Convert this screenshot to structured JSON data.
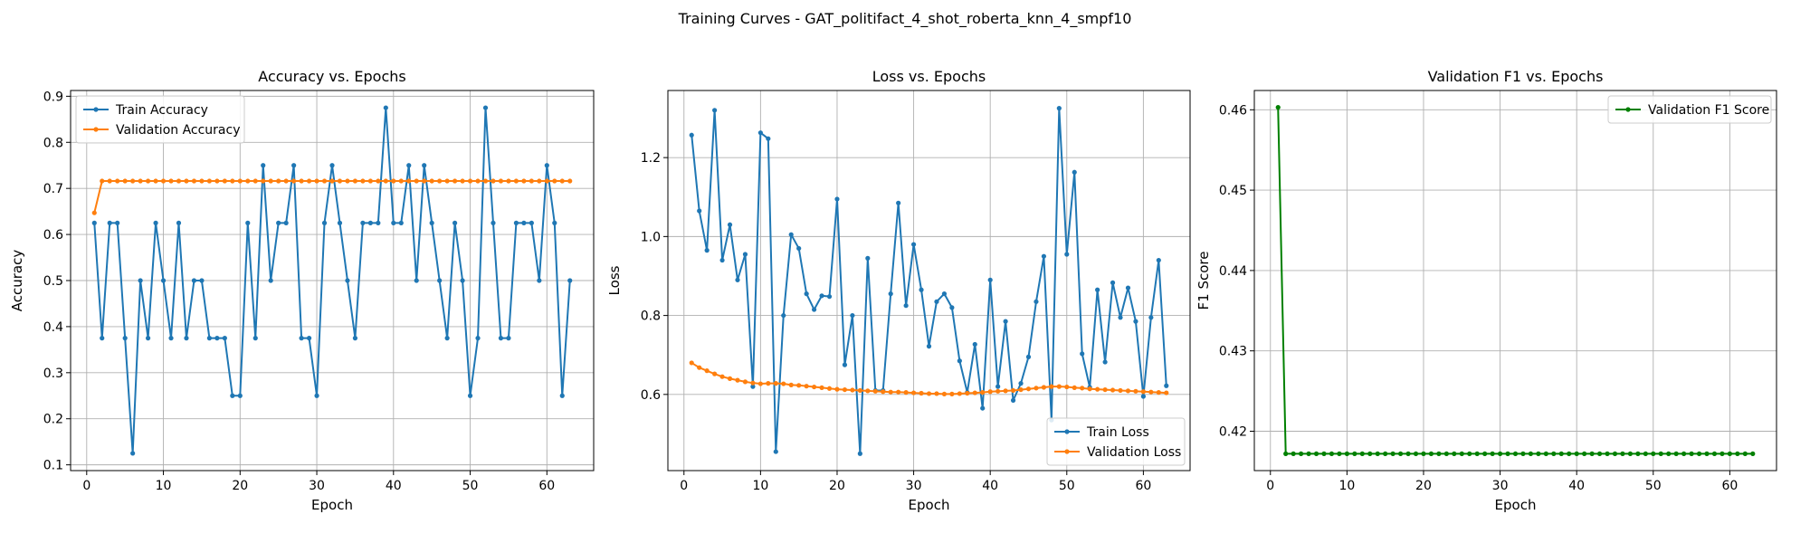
{
  "figure": {
    "suptitle": "Training Curves - GAT_politifact_4_shot_roberta_knn_4_smpf10"
  },
  "colors": {
    "train": "#1f77b4",
    "validation": "#ff7f0e",
    "f1": "#008000",
    "grid": "#b0b0b0"
  },
  "chart_data": [
    {
      "type": "line",
      "title": "Accuracy vs. Epochs",
      "xlabel": "Epoch",
      "ylabel": "Accuracy",
      "xlim": [
        -2.1,
        66.1
      ],
      "ylim": [
        0.0875,
        0.9125
      ],
      "xticks": [
        0,
        10,
        20,
        30,
        40,
        50,
        60
      ],
      "yticks": [
        0.1,
        0.2,
        0.3,
        0.4,
        0.5,
        0.6,
        0.7,
        0.8,
        0.9
      ],
      "grid": true,
      "legend_position": "top-left",
      "x": [
        1,
        2,
        3,
        4,
        5,
        6,
        7,
        8,
        9,
        10,
        11,
        12,
        13,
        14,
        15,
        16,
        17,
        18,
        19,
        20,
        21,
        22,
        23,
        24,
        25,
        26,
        27,
        28,
        29,
        30,
        31,
        32,
        33,
        34,
        35,
        36,
        37,
        38,
        39,
        40,
        41,
        42,
        43,
        44,
        45,
        46,
        47,
        48,
        49,
        50,
        51,
        52,
        53,
        54,
        55,
        56,
        57,
        58,
        59,
        60,
        61,
        62,
        63
      ],
      "series": [
        {
          "name": "Train Accuracy",
          "color": "#1f77b4",
          "values": [
            0.625,
            0.375,
            0.625,
            0.625,
            0.375,
            0.125,
            0.5,
            0.375,
            0.625,
            0.5,
            0.375,
            0.625,
            0.375,
            0.5,
            0.5,
            0.375,
            0.375,
            0.375,
            0.25,
            0.25,
            0.625,
            0.375,
            0.75,
            0.5,
            0.625,
            0.625,
            0.75,
            0.375,
            0.375,
            0.25,
            0.625,
            0.75,
            0.625,
            0.5,
            0.375,
            0.625,
            0.625,
            0.625,
            0.875,
            0.625,
            0.625,
            0.75,
            0.5,
            0.75,
            0.625,
            0.5,
            0.375,
            0.625,
            0.5,
            0.25,
            0.375,
            0.875,
            0.625,
            0.375,
            0.375,
            0.625,
            0.625,
            0.625,
            0.5,
            0.75,
            0.625,
            0.25,
            0.5
          ]
        },
        {
          "name": "Validation Accuracy",
          "color": "#ff7f0e",
          "values": [
            0.647,
            0.716,
            0.716,
            0.716,
            0.716,
            0.716,
            0.716,
            0.716,
            0.716,
            0.716,
            0.716,
            0.716,
            0.716,
            0.716,
            0.716,
            0.716,
            0.716,
            0.716,
            0.716,
            0.716,
            0.716,
            0.716,
            0.716,
            0.716,
            0.716,
            0.716,
            0.716,
            0.716,
            0.716,
            0.716,
            0.716,
            0.716,
            0.716,
            0.716,
            0.716,
            0.716,
            0.716,
            0.716,
            0.716,
            0.716,
            0.716,
            0.716,
            0.716,
            0.716,
            0.716,
            0.716,
            0.716,
            0.716,
            0.716,
            0.716,
            0.716,
            0.716,
            0.716,
            0.716,
            0.716,
            0.716,
            0.716,
            0.716,
            0.716,
            0.716,
            0.716,
            0.716,
            0.716
          ]
        }
      ]
    },
    {
      "type": "line",
      "title": "Loss vs. Epochs",
      "xlabel": "Epoch",
      "ylabel": "Loss",
      "xlim": [
        -2.1,
        66.1
      ],
      "ylim": [
        0.407,
        1.37
      ],
      "xticks": [
        0,
        10,
        20,
        30,
        40,
        50,
        60
      ],
      "yticks": [
        0.6,
        0.8,
        1.0,
        1.2
      ],
      "ytick_labels": [
        "0.6",
        "0.8",
        "1.0",
        "1.2"
      ],
      "grid": true,
      "legend_position": "bottom-right",
      "x": [
        1,
        2,
        3,
        4,
        5,
        6,
        7,
        8,
        9,
        10,
        11,
        12,
        13,
        14,
        15,
        16,
        17,
        18,
        19,
        20,
        21,
        22,
        23,
        24,
        25,
        26,
        27,
        28,
        29,
        30,
        31,
        32,
        33,
        34,
        35,
        36,
        37,
        38,
        39,
        40,
        41,
        42,
        43,
        44,
        45,
        46,
        47,
        48,
        49,
        50,
        51,
        52,
        53,
        54,
        55,
        56,
        57,
        58,
        59,
        60,
        61,
        62,
        63
      ],
      "series": [
        {
          "name": "Train Loss",
          "color": "#1f77b4",
          "values": [
            1.257,
            1.065,
            0.965,
            1.32,
            0.94,
            1.03,
            0.89,
            0.955,
            0.62,
            1.263,
            1.248,
            0.455,
            0.8,
            1.005,
            0.97,
            0.855,
            0.815,
            0.85,
            0.848,
            1.095,
            0.675,
            0.8,
            0.45,
            0.945,
            0.61,
            0.61,
            0.855,
            1.085,
            0.825,
            0.98,
            0.865,
            0.722,
            0.835,
            0.855,
            0.82,
            0.685,
            0.605,
            0.727,
            0.565,
            0.89,
            0.62,
            0.785,
            0.585,
            0.628,
            0.695,
            0.835,
            0.95,
            0.535,
            1.325,
            0.955,
            1.163,
            0.703,
            0.618,
            0.865,
            0.682,
            0.883,
            0.795,
            0.87,
            0.785,
            0.595,
            0.795,
            0.94,
            0.622
          ]
        },
        {
          "name": "Validation Loss",
          "color": "#ff7f0e",
          "values": [
            0.68,
            0.668,
            0.66,
            0.652,
            0.645,
            0.64,
            0.636,
            0.632,
            0.629,
            0.627,
            0.628,
            0.628,
            0.627,
            0.624,
            0.623,
            0.621,
            0.619,
            0.617,
            0.615,
            0.613,
            0.612,
            0.611,
            0.61,
            0.609,
            0.608,
            0.607,
            0.606,
            0.606,
            0.605,
            0.604,
            0.603,
            0.602,
            0.602,
            0.601,
            0.601,
            0.602,
            0.603,
            0.604,
            0.605,
            0.607,
            0.608,
            0.609,
            0.61,
            0.612,
            0.614,
            0.616,
            0.618,
            0.62,
            0.62,
            0.619,
            0.617,
            0.616,
            0.614,
            0.613,
            0.612,
            0.611,
            0.61,
            0.609,
            0.608,
            0.607,
            0.606,
            0.605,
            0.604
          ]
        }
      ]
    },
    {
      "type": "line",
      "title": "Validation F1 vs. Epochs",
      "xlabel": "Epoch",
      "ylabel": "F1 Score",
      "xlim": [
        -2.1,
        66.1
      ],
      "ylim": [
        0.4151,
        0.4624
      ],
      "xticks": [
        0,
        10,
        20,
        30,
        40,
        50,
        60
      ],
      "yticks": [
        0.42,
        0.43,
        0.44,
        0.45,
        0.46
      ],
      "grid": true,
      "legend_position": "top-right",
      "x": [
        1,
        2,
        3,
        4,
        5,
        6,
        7,
        8,
        9,
        10,
        11,
        12,
        13,
        14,
        15,
        16,
        17,
        18,
        19,
        20,
        21,
        22,
        23,
        24,
        25,
        26,
        27,
        28,
        29,
        30,
        31,
        32,
        33,
        34,
        35,
        36,
        37,
        38,
        39,
        40,
        41,
        42,
        43,
        44,
        45,
        46,
        47,
        48,
        49,
        50,
        51,
        52,
        53,
        54,
        55,
        56,
        57,
        58,
        59,
        60,
        61,
        62,
        63
      ],
      "series": [
        {
          "name": "Validation F1 Score",
          "color": "#008000",
          "values": [
            0.4603,
            0.4172,
            0.4172,
            0.4172,
            0.4172,
            0.4172,
            0.4172,
            0.4172,
            0.4172,
            0.4172,
            0.4172,
            0.4172,
            0.4172,
            0.4172,
            0.4172,
            0.4172,
            0.4172,
            0.4172,
            0.4172,
            0.4172,
            0.4172,
            0.4172,
            0.4172,
            0.4172,
            0.4172,
            0.4172,
            0.4172,
            0.4172,
            0.4172,
            0.4172,
            0.4172,
            0.4172,
            0.4172,
            0.4172,
            0.4172,
            0.4172,
            0.4172,
            0.4172,
            0.4172,
            0.4172,
            0.4172,
            0.4172,
            0.4172,
            0.4172,
            0.4172,
            0.4172,
            0.4172,
            0.4172,
            0.4172,
            0.4172,
            0.4172,
            0.4172,
            0.4172,
            0.4172,
            0.4172,
            0.4172,
            0.4172,
            0.4172,
            0.4172,
            0.4172,
            0.4172,
            0.4172,
            0.4172
          ]
        }
      ]
    }
  ]
}
